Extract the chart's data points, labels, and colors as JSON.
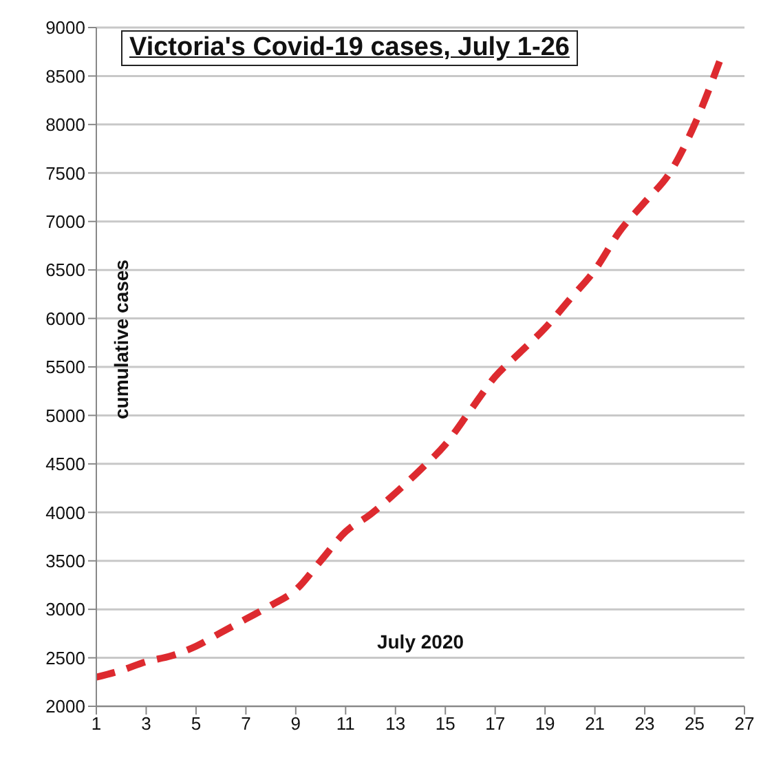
{
  "chart_data": {
    "type": "line",
    "title": "Victoria's Covid-19 cases, July 1-26",
    "xlabel": "July 2020",
    "ylabel": "cumulative cases",
    "x": [
      1,
      2,
      3,
      4,
      5,
      6,
      7,
      8,
      9,
      10,
      11,
      12,
      13,
      14,
      15,
      16,
      17,
      18,
      19,
      20,
      21,
      22,
      23,
      24,
      25,
      26
    ],
    "series": [
      {
        "color": "#dd2a2f",
        "values": [
          2300,
          2370,
          2460,
          2520,
          2620,
          2760,
          2900,
          3040,
          3200,
          3500,
          3800,
          3980,
          4200,
          4440,
          4700,
          5050,
          5400,
          5650,
          5900,
          6200,
          6500,
          6900,
          7200,
          7500,
          8000,
          8650
        ]
      }
    ],
    "xlim": [
      1,
      27
    ],
    "xticks": [
      1,
      3,
      5,
      7,
      9,
      11,
      13,
      15,
      17,
      19,
      21,
      23,
      25,
      27
    ],
    "ylim": [
      2000,
      9000
    ],
    "yticks": [
      2000,
      2500,
      3000,
      3500,
      4000,
      4500,
      5000,
      5500,
      6000,
      6500,
      7000,
      7500,
      8000,
      8500,
      9000
    ],
    "grid": "y",
    "legend": false,
    "marker": "none",
    "line_style": "dashed"
  }
}
